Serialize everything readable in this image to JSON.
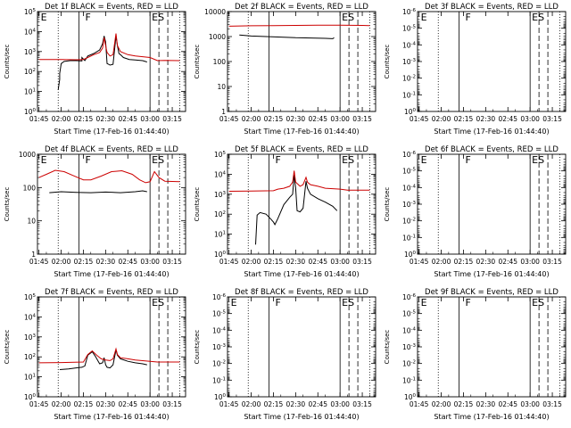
{
  "colors": {
    "events": "#000000",
    "lld": "#cc0000",
    "axes": "#000000",
    "background": "#ffffff"
  },
  "chart_data": [
    {
      "type": "line",
      "title": "Det 1f BLACK = Events, RED = LLD",
      "xlabel": "Start Time (17-Feb-16 01:44:40)",
      "ylabel": "Counts/sec",
      "x_ticks": [
        "01:45",
        "02:00",
        "02:15",
        "02:30",
        "02:45",
        "03:00",
        "03:15"
      ],
      "y_scale": "log",
      "ylim": [
        1,
        100000
      ],
      "y_ticks": [
        "10^0",
        "10^1",
        "10^2",
        "10^3",
        "10^4",
        "10^5"
      ],
      "markers": [
        {
          "label": "E",
          "x": "01:45"
        },
        {
          "label": "F",
          "x": "02:15"
        },
        {
          "label": "ES",
          "x": "03:00"
        }
      ],
      "series": [
        {
          "name": "Events",
          "color": "black",
          "x": [
            "01:58",
            "01:59",
            "01:59",
            "02:00",
            "02:02",
            "02:06",
            "02:10",
            "02:14",
            "02:14",
            "02:16",
            "02:18",
            "02:22",
            "02:26",
            "02:28",
            "02:29",
            "02:30",
            "02:31",
            "02:32",
            "02:33",
            "02:35",
            "02:37",
            "02:38",
            "02:39",
            "02:40",
            "02:42",
            "02:46",
            "02:50",
            "02:55",
            "02:58"
          ],
          "y": [
            12,
            40,
            80,
            250,
            320,
            350,
            350,
            340,
            500,
            350,
            600,
            800,
            1200,
            2500,
            6000,
            3000,
            250,
            230,
            210,
            230,
            6000,
            2000,
            800,
            700,
            500,
            400,
            380,
            350,
            300
          ]
        },
        {
          "name": "LLD",
          "color": "red",
          "x": [
            "01:45",
            "02:00",
            "02:10",
            "02:15",
            "02:18",
            "02:22",
            "02:26",
            "02:28",
            "02:29",
            "02:30",
            "02:31",
            "02:33",
            "02:35",
            "02:37",
            "02:38",
            "02:40",
            "02:45",
            "02:50",
            "03:00",
            "03:05",
            "03:10",
            "03:20"
          ],
          "y": [
            400,
            400,
            390,
            400,
            500,
            700,
            900,
            1500,
            5000,
            2000,
            900,
            600,
            700,
            8000,
            2000,
            1000,
            700,
            600,
            500,
            350,
            360,
            350
          ]
        }
      ]
    },
    {
      "type": "line",
      "title": "Det 2f BLACK = Events, RED = LLD",
      "xlabel": "Start Time (17-Feb-16 01:44:40)",
      "ylabel": "Counts/sec",
      "x_ticks": [
        "01:45",
        "02:00",
        "02:15",
        "02:30",
        "02:45",
        "03:00",
        "03:15"
      ],
      "y_scale": "log",
      "ylim": [
        1,
        10000
      ],
      "y_ticks": [
        "1",
        "10",
        "100",
        "1000",
        "10000"
      ],
      "markers": [
        {
          "label": "ES",
          "x": "03:00"
        }
      ],
      "series": [
        {
          "name": "Events",
          "color": "black",
          "x": [
            "01:52",
            "02:00",
            "02:10",
            "02:20",
            "02:30",
            "02:40",
            "02:50",
            "02:55",
            "02:56"
          ],
          "y": [
            1150,
            1050,
            1000,
            950,
            900,
            880,
            850,
            820,
            900
          ]
        },
        {
          "name": "LLD",
          "color": "red",
          "x": [
            "01:45",
            "02:00",
            "02:15",
            "02:30",
            "02:45",
            "03:00",
            "03:15",
            "03:20"
          ],
          "y": [
            2600,
            2700,
            2750,
            2800,
            2850,
            2850,
            2800,
            2750
          ]
        }
      ]
    },
    {
      "type": "line",
      "title": "Det 3f BLACK = Events, RED = LLD",
      "xlabel": "Start Time (17-Feb-16 01:44:40)",
      "ylabel": "Counts/sec",
      "x_ticks": [
        "01:45",
        "02:00",
        "02:15",
        "02:30",
        "02:45",
        "03:00",
        "03:15"
      ],
      "y_scale": "log",
      "ylim": [
        1,
        1e-06
      ],
      "y_ticks": [
        "10^0",
        "10^-1",
        "10^-2",
        "10^-3",
        "10^-4",
        "10^-5",
        "10^-6"
      ],
      "markers": [
        {
          "label": "E",
          "x": "01:45"
        },
        {
          "label": "F",
          "x": "02:15"
        },
        {
          "label": "ES",
          "x": "03:00"
        }
      ],
      "series": []
    },
    {
      "type": "line",
      "title": "Det 4f BLACK = Events, RED = LLD",
      "xlabel": "Start Time (17-Feb-16 01:44:40)",
      "ylabel": "Counts/sec",
      "x_ticks": [
        "01:45",
        "02:00",
        "02:15",
        "02:30",
        "02:45",
        "03:00",
        "03:15"
      ],
      "y_scale": "log",
      "ylim": [
        1,
        1000
      ],
      "y_ticks": [
        "1",
        "10",
        "100",
        "1000"
      ],
      "markers": [
        {
          "label": "E",
          "x": "01:45"
        },
        {
          "label": "F",
          "x": "02:15"
        },
        {
          "label": "ES",
          "x": "03:00"
        }
      ],
      "series": [
        {
          "name": "Events",
          "color": "black",
          "x": [
            "01:52",
            "02:00",
            "02:10",
            "02:20",
            "02:30",
            "02:40",
            "02:50",
            "02:55",
            "02:58"
          ],
          "y": [
            70,
            75,
            72,
            70,
            73,
            70,
            75,
            80,
            75
          ]
        },
        {
          "name": "LLD",
          "color": "red",
          "x": [
            "01:45",
            "01:50",
            "01:56",
            "02:02",
            "02:08",
            "02:15",
            "02:20",
            "02:27",
            "02:34",
            "02:41",
            "02:48",
            "02:53",
            "02:57",
            "03:00",
            "03:03",
            "03:06",
            "03:10",
            "03:20"
          ],
          "y": [
            200,
            250,
            330,
            300,
            230,
            170,
            170,
            220,
            300,
            320,
            250,
            170,
            140,
            150,
            300,
            200,
            155,
            150
          ]
        }
      ]
    },
    {
      "type": "line",
      "title": "Det 5f BLACK = Events, RED = LLD",
      "xlabel": "Start Time (17-Feb-16 01:44:40)",
      "ylabel": "Counts/sec",
      "x_ticks": [
        "01:45",
        "02:00",
        "02:15",
        "02:30",
        "02:45",
        "03:00",
        "03:15"
      ],
      "y_scale": "log",
      "ylim": [
        1,
        100000
      ],
      "y_ticks": [
        "10^0",
        "10^1",
        "10^2",
        "10^3",
        "10^4",
        "10^5"
      ],
      "markers": [
        {
          "label": "F",
          "x": "02:15"
        },
        {
          "label": "ES",
          "x": "03:00"
        }
      ],
      "series": [
        {
          "name": "Events",
          "color": "black",
          "x": [
            "02:03",
            "02:04",
            "02:06",
            "02:10",
            "02:13",
            "02:15",
            "02:16",
            "02:18",
            "02:22",
            "02:26",
            "02:28",
            "02:29",
            "02:30",
            "02:31",
            "02:33",
            "02:35",
            "02:37",
            "02:38",
            "02:40",
            "02:45",
            "02:50",
            "02:55",
            "02:58"
          ],
          "y": [
            3,
            90,
            120,
            100,
            60,
            40,
            30,
            60,
            300,
            700,
            1000,
            9000,
            2000,
            150,
            130,
            200,
            4500,
            2000,
            1000,
            600,
            400,
            250,
            150
          ]
        },
        {
          "name": "LLD",
          "color": "red",
          "x": [
            "01:45",
            "02:00",
            "02:15",
            "02:18",
            "02:22",
            "02:26",
            "02:28",
            "02:29",
            "02:30",
            "02:33",
            "02:35",
            "02:37",
            "02:38",
            "02:40",
            "02:45",
            "02:50",
            "03:00",
            "03:05",
            "03:20"
          ],
          "y": [
            1400,
            1450,
            1500,
            1800,
            2000,
            2500,
            4000,
            15000,
            4000,
            2500,
            3000,
            7000,
            4000,
            3000,
            2500,
            2000,
            1800,
            1600,
            1600
          ]
        }
      ]
    },
    {
      "type": "line",
      "title": "Det 6f BLACK = Events, RED = LLD",
      "xlabel": "Start Time (17-Feb-16 01:44:40)",
      "ylabel": "Counts/sec",
      "x_ticks": [
        "01:45",
        "02:00",
        "02:15",
        "02:30",
        "02:45",
        "03:00",
        "03:15"
      ],
      "y_scale": "log",
      "ylim": [
        1,
        1e-06
      ],
      "y_ticks": [
        "10^0",
        "10^-1",
        "10^-2",
        "10^-3",
        "10^-4",
        "10^-5",
        "10^-6"
      ],
      "markers": [
        {
          "label": "E",
          "x": "01:45"
        },
        {
          "label": "F",
          "x": "02:15"
        },
        {
          "label": "ES",
          "x": "03:00"
        }
      ],
      "series": []
    },
    {
      "type": "line",
      "title": "Det 7f BLACK = Events, RED = LLD",
      "xlabel": "Start Time (17-Feb-16 01:44:40)",
      "ylabel": "Counts/sec",
      "x_ticks": [
        "01:45",
        "02:00",
        "02:15",
        "02:30",
        "02:45",
        "03:00",
        "03:15"
      ],
      "y_scale": "log",
      "ylim": [
        1,
        100000
      ],
      "y_ticks": [
        "10^0",
        "10^1",
        "10^2",
        "10^3",
        "10^4",
        "10^5"
      ],
      "markers": [
        {
          "label": "ES",
          "x": "03:00"
        }
      ],
      "series": [
        {
          "name": "Events",
          "color": "black",
          "x": [
            "01:59",
            "02:05",
            "02:10",
            "02:14",
            "02:16",
            "02:18",
            "02:21",
            "02:23",
            "02:25",
            "02:26",
            "02:28",
            "02:29",
            "02:30",
            "02:31",
            "02:33",
            "02:35",
            "02:37",
            "02:38",
            "02:40",
            "02:45",
            "02:50",
            "02:55",
            "02:58"
          ],
          "y": [
            23,
            25,
            28,
            30,
            35,
            120,
            180,
            110,
            60,
            45,
            50,
            90,
            40,
            30,
            28,
            40,
            220,
            120,
            80,
            60,
            50,
            45,
            40
          ]
        },
        {
          "name": "LLD",
          "color": "red",
          "x": [
            "01:45",
            "02:00",
            "02:15",
            "02:18",
            "02:21",
            "02:24",
            "02:27",
            "02:30",
            "02:33",
            "02:35",
            "02:37",
            "02:38",
            "02:40",
            "02:45",
            "02:50",
            "03:00",
            "03:05",
            "03:20"
          ],
          "y": [
            50,
            52,
            55,
            130,
            200,
            120,
            80,
            70,
            65,
            80,
            250,
            130,
            90,
            80,
            70,
            60,
            55,
            55
          ]
        }
      ]
    },
    {
      "type": "line",
      "title": "Det 8f BLACK = Events, RED = LLD",
      "xlabel": "Start Time (17-Feb-16 01:44:40)",
      "ylabel": "Counts/sec",
      "x_ticks": [
        "01:45",
        "02:00",
        "02:15",
        "02:30",
        "02:45",
        "03:00",
        "03:15"
      ],
      "y_scale": "log",
      "ylim": [
        1,
        1e-06
      ],
      "y_ticks": [
        "10^0",
        "10^-1",
        "10^-2",
        "10^-3",
        "10^-4",
        "10^-5",
        "10^-6"
      ],
      "markers": [
        {
          "label": "E",
          "x": "01:45"
        },
        {
          "label": "F",
          "x": "02:15"
        },
        {
          "label": "ES",
          "x": "03:00"
        }
      ],
      "series": []
    },
    {
      "type": "line",
      "title": "Det 9f BLACK = Events, RED = LLD",
      "xlabel": "Start Time (17-Feb-16 01:44:40)",
      "ylabel": "Counts/sec",
      "x_ticks": [
        "01:45",
        "02:00",
        "02:15",
        "02:30",
        "02:45",
        "03:00",
        "03:15"
      ],
      "y_scale": "log",
      "ylim": [
        1,
        1e-06
      ],
      "y_ticks": [
        "10^0",
        "10^-1",
        "10^-2",
        "10^-3",
        "10^-4",
        "10^-5",
        "10^-6"
      ],
      "markers": [
        {
          "label": "E",
          "x": "01:45"
        },
        {
          "label": "F",
          "x": "02:15"
        },
        {
          "label": "ES",
          "x": "03:00"
        }
      ],
      "series": []
    }
  ]
}
